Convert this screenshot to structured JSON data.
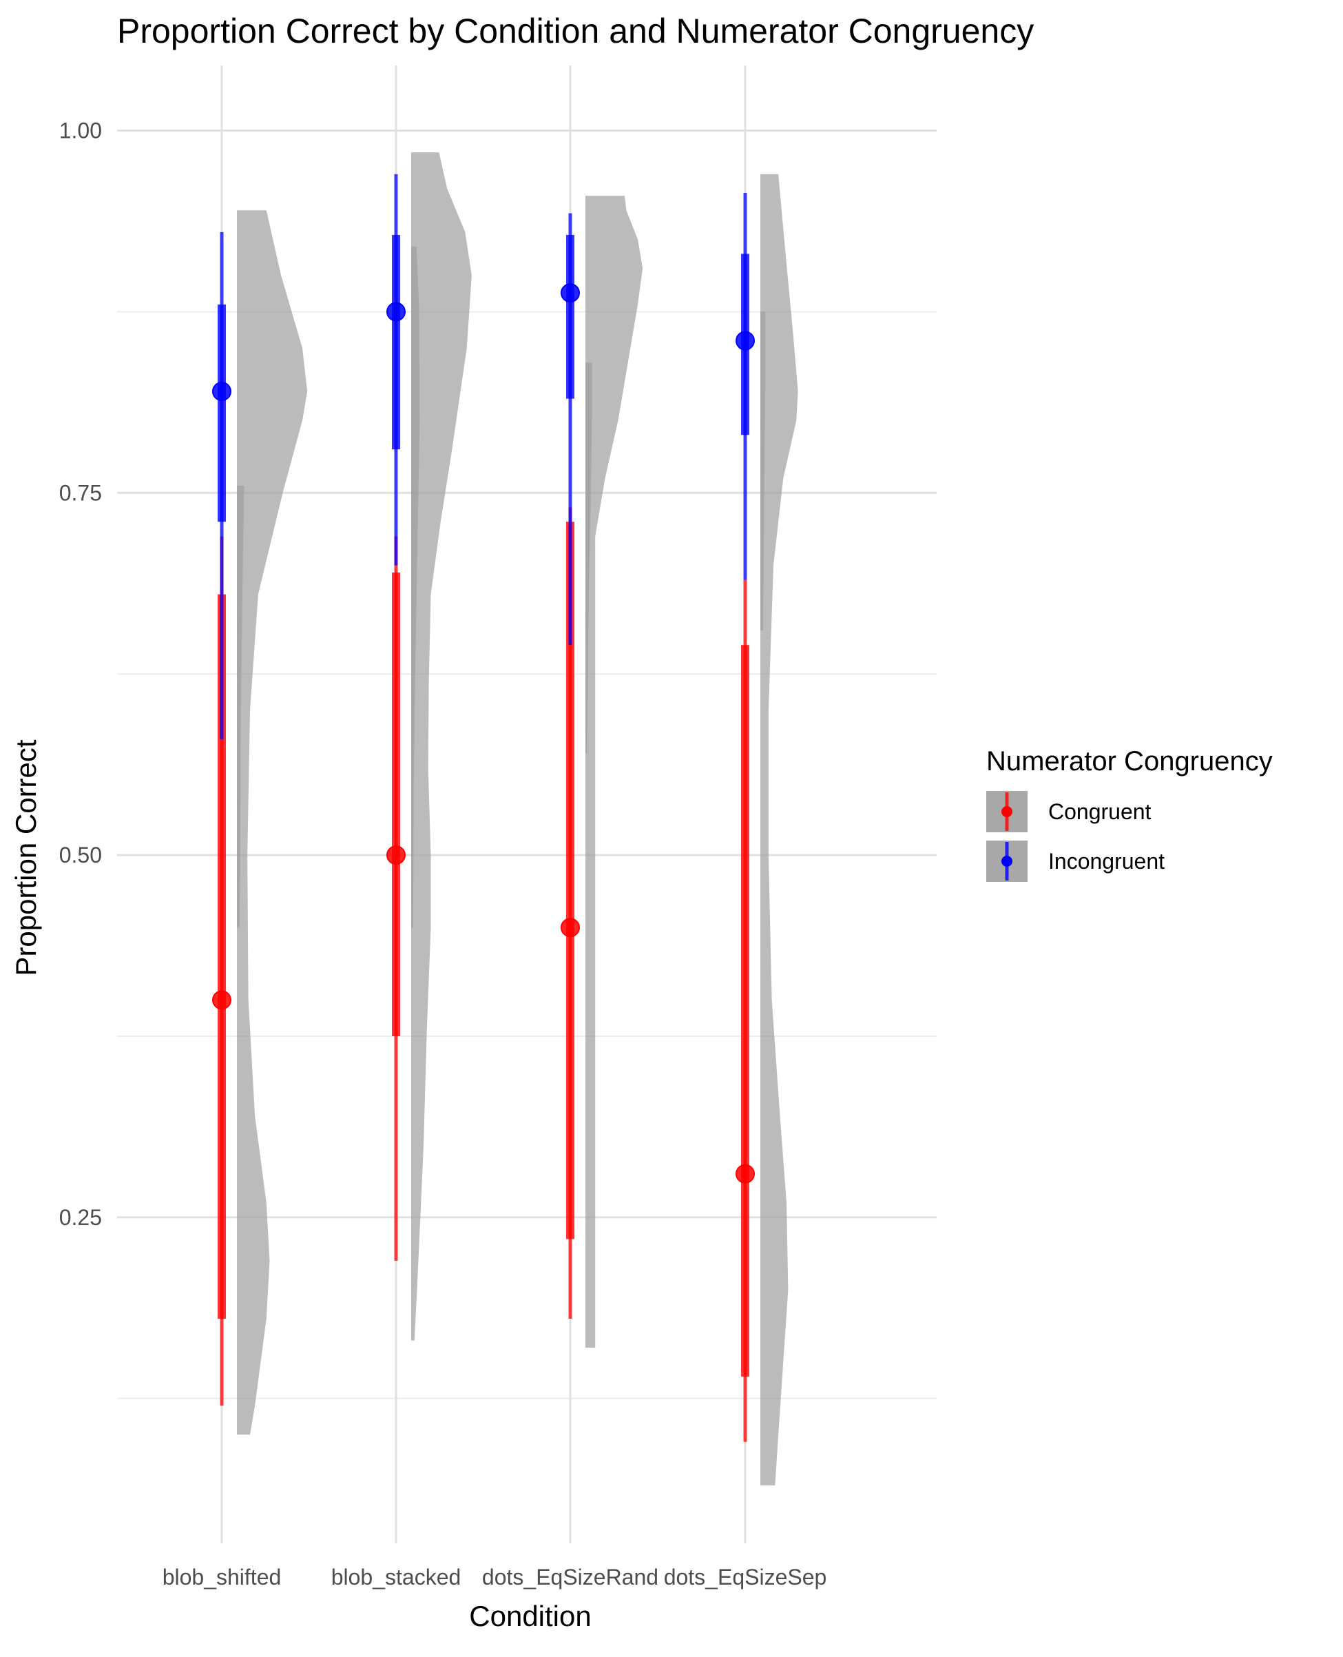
{
  "chart_data": {
    "type": "violin",
    "title": "Proportion Correct by Condition and Numerator Congruency",
    "xlabel": "Condition",
    "ylabel": "Proportion Correct",
    "categories": [
      "blob_shifted",
      "blob_stacked",
      "dots_EqSizeRand",
      "dots_EqSizeSep"
    ],
    "ylim": [
      0.025,
      1.045
    ],
    "yticks": [
      0.25,
      0.5,
      0.75,
      1.0
    ],
    "ytick_labels": [
      "0.25",
      "0.50",
      "0.75",
      "1.00"
    ],
    "grid": true,
    "legend": {
      "title": "Numerator Congruency",
      "position": "right",
      "entries": [
        {
          "label": "Congruent",
          "color": "#ff0000"
        },
        {
          "label": "Incongruent",
          "color": "#0000ff"
        }
      ]
    },
    "series": [
      {
        "name": "Congruent",
        "color": "#ff0000",
        "point": [
          0.4,
          0.5,
          0.45,
          0.28
        ],
        "inner_interval": [
          [
            0.18,
            0.68
          ],
          [
            0.375,
            0.695
          ],
          [
            0.235,
            0.73
          ],
          [
            0.14,
            0.645
          ]
        ],
        "outer_interval": [
          [
            0.12,
            0.72
          ],
          [
            0.22,
            0.72
          ],
          [
            0.18,
            0.74
          ],
          [
            0.095,
            0.69
          ]
        ]
      },
      {
        "name": "Incongruent",
        "color": "#0000ff",
        "point": [
          0.82,
          0.875,
          0.888,
          0.855
        ],
        "inner_interval": [
          [
            0.73,
            0.88
          ],
          [
            0.78,
            0.928
          ],
          [
            0.815,
            0.928
          ],
          [
            0.79,
            0.915
          ]
        ],
        "outer_interval": [
          [
            0.58,
            0.93
          ],
          [
            0.7,
            0.97
          ],
          [
            0.645,
            0.943
          ],
          [
            0.69,
            0.957
          ]
        ]
      }
    ],
    "densities": [
      {
        "condition": "blob_shifted",
        "group": "Congruent",
        "profile": [
          [
            0.1,
            0.04
          ],
          [
            0.12,
            0.055
          ],
          [
            0.18,
            0.09
          ],
          [
            0.22,
            0.1
          ],
          [
            0.26,
            0.09
          ],
          [
            0.32,
            0.055
          ],
          [
            0.4,
            0.035
          ],
          [
            0.5,
            0.032
          ],
          [
            0.6,
            0.04
          ],
          [
            0.68,
            0.065
          ],
          [
            0.75,
            0.14
          ],
          [
            0.8,
            0.2
          ],
          [
            0.82,
            0.215
          ],
          [
            0.85,
            0.2
          ],
          [
            0.9,
            0.135
          ],
          [
            0.945,
            0.09
          ]
        ]
      },
      {
        "condition": "blob_shifted",
        "group": "Incongruent",
        "profile": [
          [
            0.45,
            0.008
          ],
          [
            0.5,
            0.01
          ],
          [
            0.6,
            0.012
          ],
          [
            0.7,
            0.018
          ],
          [
            0.755,
            0.022
          ]
        ]
      },
      {
        "condition": "blob_stacked",
        "group": "Congruent",
        "profile": [
          [
            0.165,
            0.01
          ],
          [
            0.2,
            0.018
          ],
          [
            0.25,
            0.028
          ],
          [
            0.3,
            0.038
          ],
          [
            0.38,
            0.048
          ],
          [
            0.45,
            0.06
          ],
          [
            0.5,
            0.06
          ],
          [
            0.56,
            0.052
          ],
          [
            0.62,
            0.054
          ],
          [
            0.68,
            0.06
          ],
          [
            0.73,
            0.09
          ],
          [
            0.78,
            0.125
          ],
          [
            0.85,
            0.17
          ],
          [
            0.9,
            0.185
          ],
          [
            0.93,
            0.165
          ],
          [
            0.96,
            0.11
          ],
          [
            0.985,
            0.085
          ]
        ]
      },
      {
        "condition": "blob_stacked",
        "group": "Incongruent",
        "profile": [
          [
            0.45,
            0.006
          ],
          [
            0.55,
            0.008
          ],
          [
            0.62,
            0.012
          ],
          [
            0.7,
            0.018
          ],
          [
            0.8,
            0.026
          ],
          [
            0.88,
            0.024
          ],
          [
            0.92,
            0.016
          ]
        ]
      },
      {
        "condition": "dots_EqSizeRand",
        "group": "Congruent",
        "profile": [
          [
            0.16,
            0.03
          ],
          [
            0.25,
            0.03
          ],
          [
            0.4,
            0.03
          ],
          [
            0.55,
            0.03
          ],
          [
            0.62,
            0.03
          ],
          [
            0.68,
            0.03
          ],
          [
            0.72,
            0.03
          ],
          [
            0.76,
            0.06
          ],
          [
            0.8,
            0.1
          ],
          [
            0.84,
            0.13
          ],
          [
            0.88,
            0.16
          ],
          [
            0.905,
            0.175
          ],
          [
            0.925,
            0.16
          ],
          [
            0.945,
            0.125
          ],
          [
            0.955,
            0.12
          ]
        ]
      },
      {
        "condition": "dots_EqSizeRand",
        "group": "Incongruent",
        "profile": [
          [
            0.57,
            0.005
          ],
          [
            0.62,
            0.008
          ],
          [
            0.68,
            0.01
          ],
          [
            0.74,
            0.016
          ],
          [
            0.8,
            0.02
          ],
          [
            0.84,
            0.02
          ]
        ]
      },
      {
        "condition": "dots_EqSizeSep",
        "group": "Congruent",
        "profile": [
          [
            0.065,
            0.045
          ],
          [
            0.1,
            0.055
          ],
          [
            0.15,
            0.07
          ],
          [
            0.2,
            0.085
          ],
          [
            0.26,
            0.08
          ],
          [
            0.32,
            0.06
          ],
          [
            0.4,
            0.035
          ],
          [
            0.5,
            0.025
          ],
          [
            0.6,
            0.025
          ],
          [
            0.7,
            0.04
          ],
          [
            0.76,
            0.07
          ],
          [
            0.8,
            0.11
          ],
          [
            0.82,
            0.115
          ],
          [
            0.86,
            0.1
          ],
          [
            0.92,
            0.075
          ],
          [
            0.97,
            0.055
          ]
        ]
      },
      {
        "condition": "dots_EqSizeSep",
        "group": "Incongruent",
        "profile": [
          [
            0.655,
            0.008
          ],
          [
            0.7,
            0.01
          ],
          [
            0.76,
            0.012
          ],
          [
            0.82,
            0.015
          ],
          [
            0.875,
            0.015
          ]
        ]
      }
    ]
  }
}
